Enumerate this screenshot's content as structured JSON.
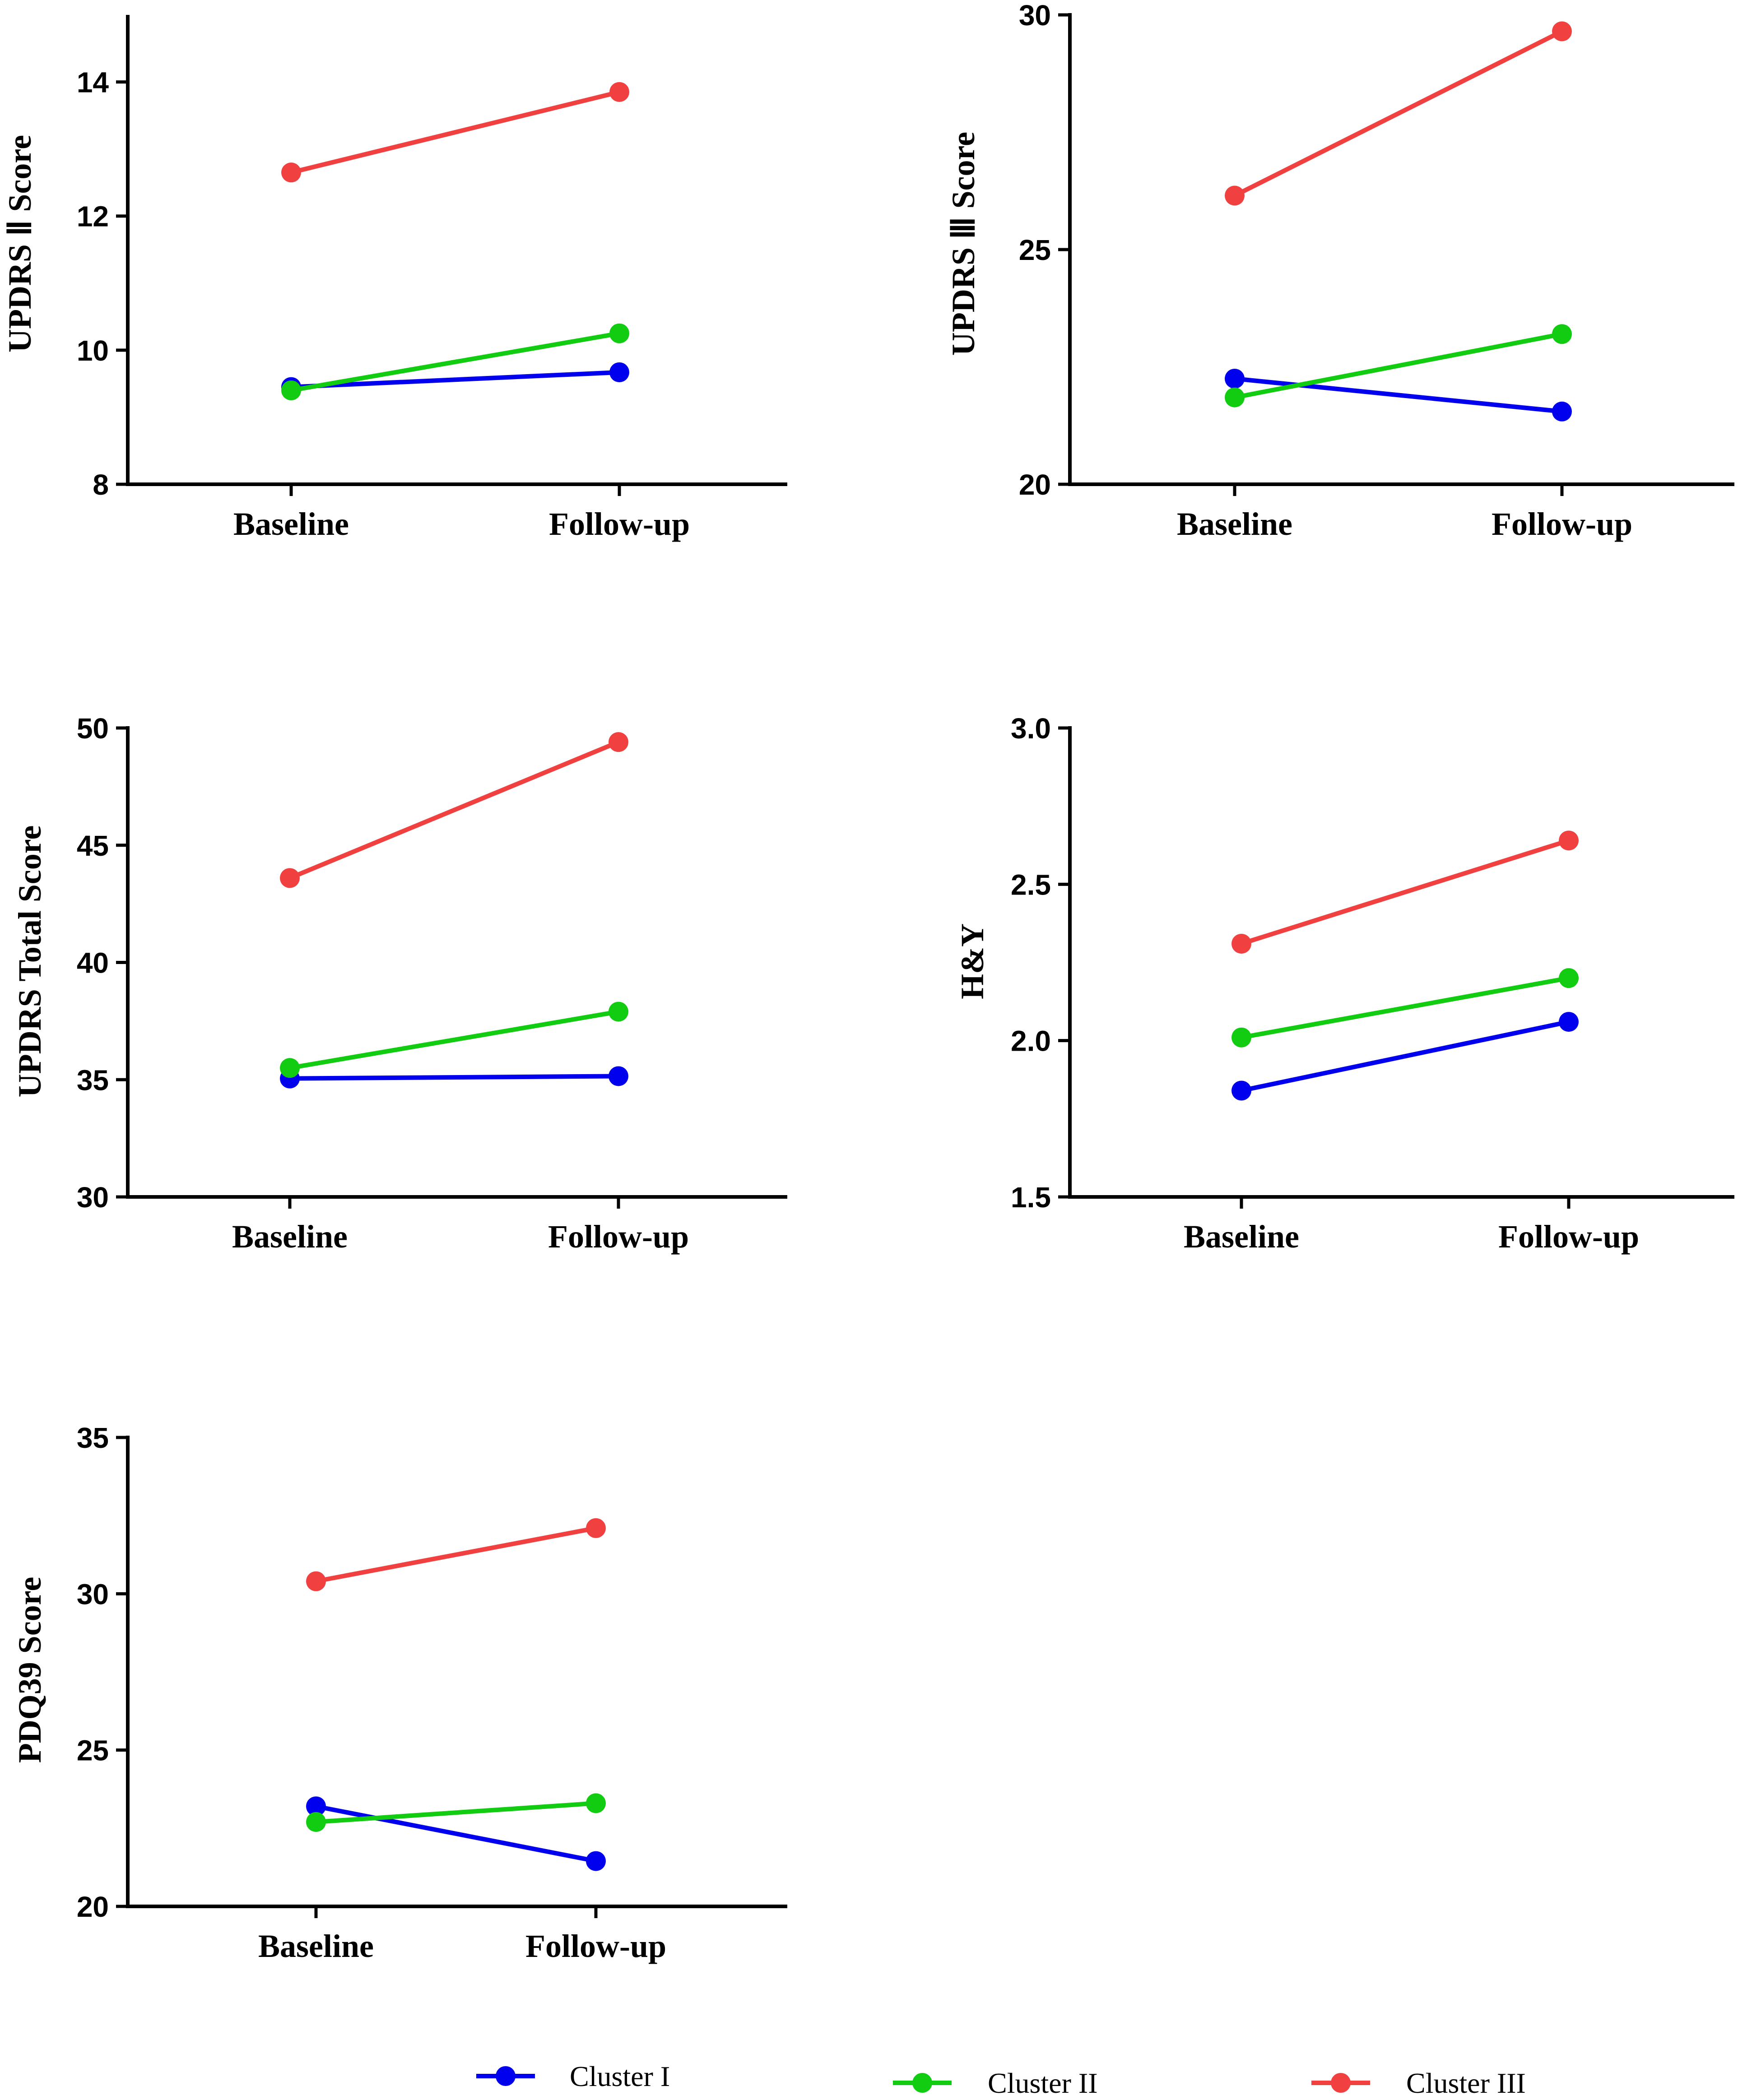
{
  "chart_data": [
    {
      "type": "line",
      "id": "updrs2",
      "ylabel": "UPDRS Ⅱ Score",
      "categories": [
        "Baseline",
        "Follow-up"
      ],
      "ylim": [
        8,
        15
      ],
      "yticks": [
        8,
        10,
        12,
        14
      ],
      "series": [
        {
          "name": "Cluster I",
          "values": [
            9.45,
            9.67
          ]
        },
        {
          "name": "Cluster II",
          "values": [
            9.4,
            10.25
          ]
        },
        {
          "name": "Cluster III",
          "values": [
            12.65,
            13.85
          ]
        }
      ]
    },
    {
      "type": "line",
      "id": "updrs3",
      "ylabel": "UPDRS Ⅲ Score",
      "categories": [
        "Baseline",
        "Follow-up"
      ],
      "ylim": [
        20,
        30
      ],
      "yticks": [
        20,
        25,
        30
      ],
      "series": [
        {
          "name": "Cluster I",
          "values": [
            22.25,
            21.55
          ]
        },
        {
          "name": "Cluster II",
          "values": [
            21.85,
            23.2
          ]
        },
        {
          "name": "Cluster III",
          "values": [
            26.15,
            29.65
          ]
        }
      ]
    },
    {
      "type": "line",
      "id": "updrs-total",
      "ylabel": "UPDRS Total Score",
      "categories": [
        "Baseline",
        "Follow-up"
      ],
      "ylim": [
        30,
        50
      ],
      "yticks": [
        30,
        35,
        40,
        45,
        50
      ],
      "series": [
        {
          "name": "Cluster I",
          "values": [
            35.05,
            35.15
          ]
        },
        {
          "name": "Cluster II",
          "values": [
            35.5,
            37.9
          ]
        },
        {
          "name": "Cluster III",
          "values": [
            43.6,
            49.4
          ]
        }
      ]
    },
    {
      "type": "line",
      "id": "hy",
      "ylabel": "H&Y",
      "categories": [
        "Baseline",
        "Follow-up"
      ],
      "ylim": [
        1.5,
        3.0
      ],
      "yticks": [
        1.5,
        2.0,
        2.5,
        3.0
      ],
      "ytick_labels": [
        "1.5",
        "2.0",
        "2.5",
        "3.0"
      ],
      "series": [
        {
          "name": "Cluster I",
          "values": [
            1.84,
            2.06
          ]
        },
        {
          "name": "Cluster II",
          "values": [
            2.01,
            2.2
          ]
        },
        {
          "name": "Cluster III",
          "values": [
            2.31,
            2.64
          ]
        }
      ]
    },
    {
      "type": "line",
      "id": "pdq39",
      "ylabel": "PDQ39 Score",
      "categories": [
        "Baseline",
        "Follow-up"
      ],
      "ylim": [
        20,
        35
      ],
      "yticks": [
        20,
        25,
        30,
        35
      ],
      "series": [
        {
          "name": "Cluster I",
          "values": [
            23.2,
            21.45
          ]
        },
        {
          "name": "Cluster II",
          "values": [
            22.7,
            23.3
          ]
        },
        {
          "name": "Cluster III",
          "values": [
            30.4,
            32.1
          ]
        }
      ]
    }
  ],
  "legend": [
    {
      "name": "Cluster I",
      "color": "#0000ee"
    },
    {
      "name": "Cluster II",
      "color": "#11cc11"
    },
    {
      "name": "Cluster III",
      "color": "#f04040"
    }
  ],
  "series_colors": {
    "Cluster I": "#0000ee",
    "Cluster II": "#11cc11",
    "Cluster III": "#f04040"
  }
}
